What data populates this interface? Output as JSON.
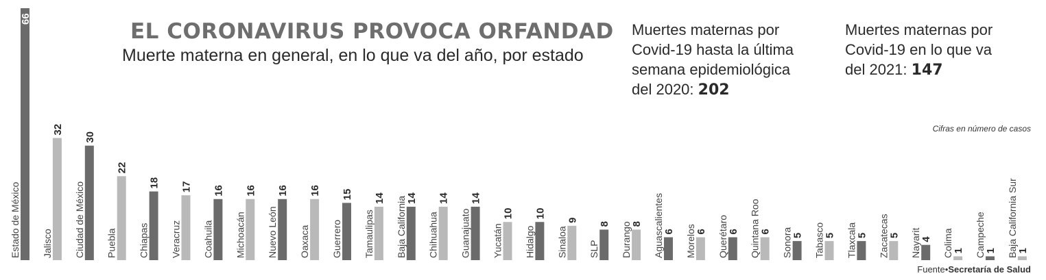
{
  "header": {
    "title": "EL CORONAVIRUS PROVOCA ORFANDAD",
    "subtitle": "Muerte materna en general, en lo que va del año, por estado"
  },
  "stats": [
    {
      "text": "Muertes maternas por Covid-19 hasta la última semana epidemiológica del 2020:",
      "value": "202"
    },
    {
      "text": "Muertes maternas por Covid-19 en lo que va del 2021:",
      "value": "147"
    }
  ],
  "note": "Cifras en número de casos",
  "source": {
    "prefix": "Fuente",
    "name": "Secretaría de Salud"
  },
  "colors": {
    "dark": "#6b6b6b",
    "light": "#b9b9b9",
    "text": "#2a2a2a"
  },
  "chart_data": {
    "type": "bar",
    "categories": [
      "Estado de México",
      "Jalisco",
      "Ciudad de México",
      "Puebla",
      "Chiapas",
      "Veracruz",
      "Coahuila",
      "Michoacán",
      "Nuevo León",
      "Oaxaca",
      "Guerrero",
      "Tamaulipas",
      "Baja California",
      "Chihuahua",
      "Guanajuato",
      "Yucatán",
      "Hidalgo",
      "Sinaloa",
      "SLP",
      "Durango",
      "Aguascalientes",
      "Morelos",
      "Querétaro",
      "Quintana Roo",
      "Sonora",
      "Tabasco",
      "Tlaxcala",
      "Zacatecas",
      "Nayarit",
      "Colima",
      "Campeche",
      "Baja California Sur"
    ],
    "values": [
      66,
      32,
      30,
      22,
      18,
      17,
      16,
      16,
      16,
      16,
      15,
      14,
      14,
      14,
      14,
      10,
      10,
      9,
      8,
      8,
      6,
      6,
      6,
      6,
      5,
      5,
      5,
      5,
      4,
      1,
      1,
      1
    ],
    "title": "EL CORONAVIRUS PROVOCA ORFANDAD",
    "subtitle": "Muerte materna en general, en lo que va del año, por estado",
    "ylim": [
      0,
      66
    ],
    "grid": false,
    "legend": "none",
    "bar_shades": [
      "dark",
      "light",
      "dark",
      "light",
      "dark",
      "light",
      "dark",
      "light",
      "dark",
      "light",
      "dark",
      "light",
      "dark",
      "light",
      "dark",
      "light",
      "dark",
      "light",
      "dark",
      "light",
      "dark",
      "light",
      "dark",
      "light",
      "dark",
      "light",
      "dark",
      "light",
      "dark",
      "light",
      "dark",
      "light"
    ]
  }
}
